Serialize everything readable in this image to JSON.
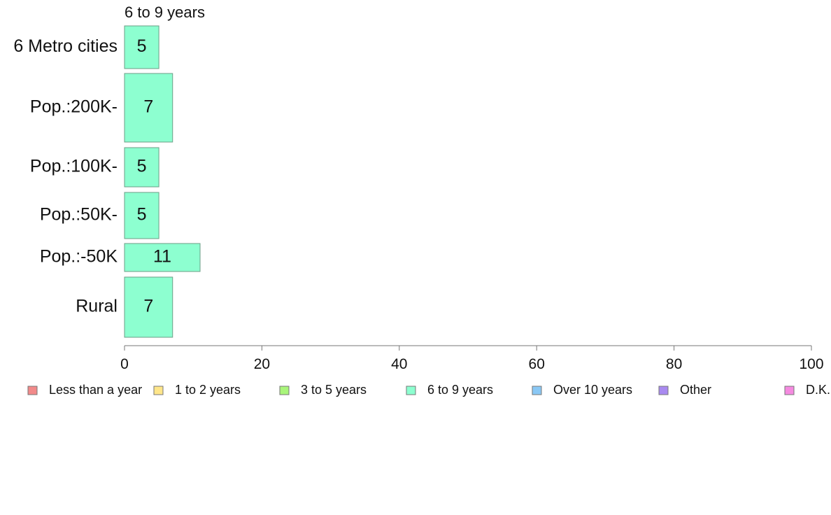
{
  "chart_data": {
    "type": "bar",
    "orientation": "horizontal",
    "title": "6 to 9 years",
    "categories": [
      "6 Metro cities",
      "Pop.:200K-",
      "Pop.:100K-",
      "Pop.:50K-",
      "Pop.:-50K",
      "Rural"
    ],
    "values": [
      5,
      7,
      5,
      5,
      11,
      7
    ],
    "value_labels": [
      "5",
      "7",
      "5",
      "5",
      "11",
      "7"
    ],
    "bar_fill": "#8dffd0",
    "bar_stroke": "#6b9e86",
    "xlim": [
      0,
      100
    ],
    "x_ticks": [
      0,
      20,
      40,
      60,
      80,
      100
    ],
    "x_tick_labels": [
      "0",
      "20",
      "40",
      "60",
      "80",
      "100"
    ],
    "grid": false,
    "legend_position": "bottom",
    "legend": [
      {
        "label": "Less than a year",
        "color": "#f28a8a"
      },
      {
        "label": "1 to 2 years",
        "color": "#ffe68a"
      },
      {
        "label": "3 to 5 years",
        "color": "#a9f57a"
      },
      {
        "label": "6 to 9 years",
        "color": "#8dffd0"
      },
      {
        "label": "Over 10 years",
        "color": "#8ac8f5"
      },
      {
        "label": "Other",
        "color": "#a98af0"
      },
      {
        "label": "D.K.",
        "color": "#f58ae0"
      }
    ]
  }
}
